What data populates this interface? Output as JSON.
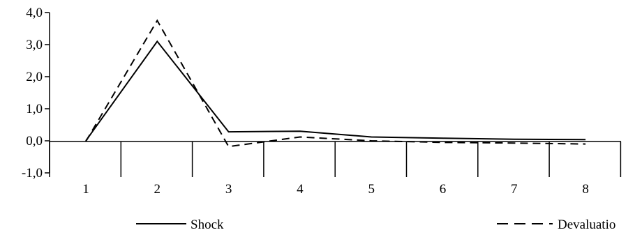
{
  "chart_data": {
    "type": "line",
    "categories": [
      "1",
      "2",
      "3",
      "4",
      "5",
      "6",
      "7",
      "8"
    ],
    "series": [
      {
        "name": "Shock",
        "values": [
          0.0,
          3.1,
          0.28,
          0.3,
          0.12,
          0.08,
          0.05,
          0.04
        ],
        "style": "solid",
        "color": "#000000"
      },
      {
        "name": "Devaluatio",
        "values": [
          -0.02,
          3.75,
          -0.18,
          0.12,
          0.0,
          -0.05,
          -0.07,
          -0.1
        ],
        "style": "dashed",
        "color": "#000000"
      }
    ],
    "y_ticks": [
      "-1,0",
      "0,0",
      "1,0",
      "2,0",
      "3,0",
      "4,0"
    ],
    "ylim": [
      -1,
      4
    ],
    "title": "",
    "xlabel": "",
    "ylabel": "",
    "grid": false,
    "legend_position": "bottom"
  }
}
